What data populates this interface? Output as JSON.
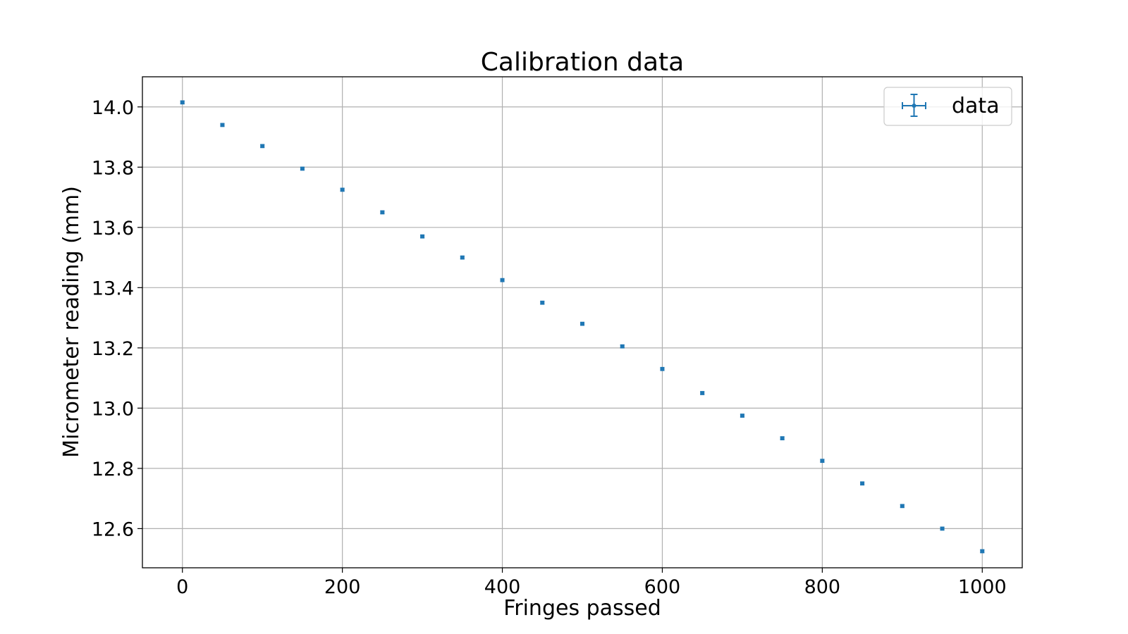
{
  "chart_data": {
    "type": "scatter",
    "title": "Calibration data",
    "xlabel": "Fringes passed",
    "ylabel": "Micrometer reading (mm)",
    "xlim": [
      -50,
      1050
    ],
    "ylim": [
      12.47,
      14.1
    ],
    "xticks": [
      0,
      200,
      400,
      600,
      800,
      1000
    ],
    "yticks": [
      12.6,
      12.8,
      13.0,
      13.2,
      13.4,
      13.6,
      13.8,
      14.0
    ],
    "xtick_labels": [
      "0",
      "200",
      "400",
      "600",
      "800",
      "1000"
    ],
    "ytick_labels": [
      "12.6",
      "12.8",
      "13.0",
      "13.2",
      "13.4",
      "13.6",
      "13.8",
      "14.0"
    ],
    "grid": true,
    "legend_position": "top-right",
    "series": [
      {
        "name": "data",
        "color": "#1f77b4",
        "marker": "errorbar",
        "x": [
          0,
          50,
          100,
          150,
          200,
          250,
          300,
          350,
          400,
          450,
          500,
          550,
          600,
          650,
          700,
          750,
          800,
          850,
          900,
          950,
          1000
        ],
        "y": [
          14.015,
          13.94,
          13.87,
          13.795,
          13.725,
          13.65,
          13.57,
          13.5,
          13.425,
          13.35,
          13.28,
          13.205,
          13.13,
          13.05,
          12.975,
          12.9,
          12.825,
          12.75,
          12.675,
          12.6,
          12.525
        ],
        "yerr": 0.005,
        "xerr": 0
      }
    ]
  }
}
